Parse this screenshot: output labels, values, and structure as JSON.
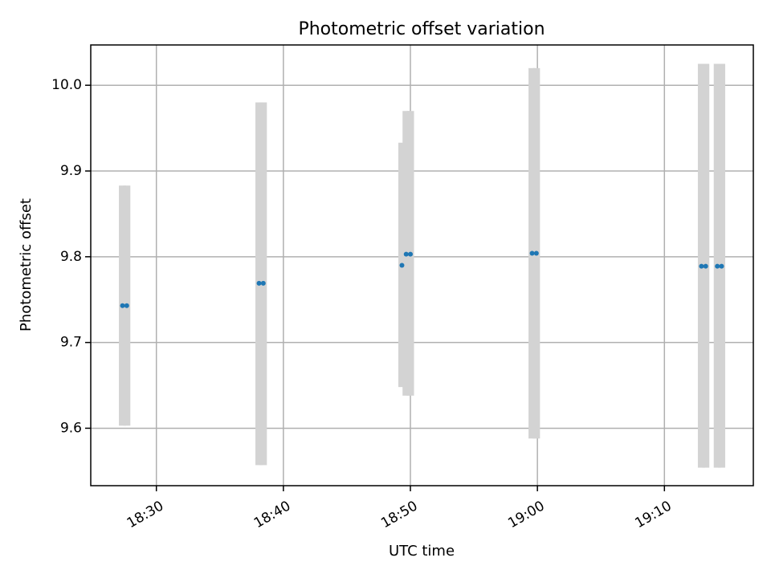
{
  "colors": {
    "error_bar": "#d3d3d3",
    "point": "#1f77b4",
    "grid": "#b0b0b0"
  },
  "chart_data": {
    "type": "scatter",
    "title": "Photometric offset variation",
    "xlabel": "UTC time",
    "ylabel": "Photometric offset",
    "grid": true,
    "legend": "none",
    "xlim": [
      "18:24:50",
      "19:17:00"
    ],
    "ylim": [
      9.533,
      10.047
    ],
    "x_ticks": [
      "18:30",
      "18:40",
      "18:50",
      "19:00",
      "19:10"
    ],
    "y_ticks": [
      "9.6",
      "9.7",
      "9.8",
      "9.9",
      "10.0"
    ],
    "series": [
      {
        "values": [
          {
            "x": "18:27:20",
            "y": 9.743,
            "y_low": 9.603,
            "y_high": 9.883
          },
          {
            "x": "18:27:40",
            "y": 9.743,
            "y_low": 9.603,
            "y_high": 9.883
          },
          {
            "x": "18:38:05",
            "y": 9.769,
            "y_low": 9.557,
            "y_high": 9.98
          },
          {
            "x": "18:38:25",
            "y": 9.769,
            "y_low": 9.557,
            "y_high": 9.98
          },
          {
            "x": "18:49:20",
            "y": 9.79,
            "y_low": 9.648,
            "y_high": 9.933
          },
          {
            "x": "18:49:40",
            "y": 9.803,
            "y_low": 9.638,
            "y_high": 9.97
          },
          {
            "x": "18:50:00",
            "y": 9.803,
            "y_low": 9.638,
            "y_high": 9.97
          },
          {
            "x": "18:59:35",
            "y": 9.804,
            "y_low": 9.588,
            "y_high": 10.02
          },
          {
            "x": "18:59:55",
            "y": 9.804,
            "y_low": 9.588,
            "y_high": 10.02
          },
          {
            "x": "19:12:55",
            "y": 9.789,
            "y_low": 9.554,
            "y_high": 10.025
          },
          {
            "x": "19:13:15",
            "y": 9.789,
            "y_low": 9.554,
            "y_high": 10.025
          },
          {
            "x": "19:14:10",
            "y": 9.789,
            "y_low": 9.554,
            "y_high": 10.025
          },
          {
            "x": "19:14:30",
            "y": 9.789,
            "y_low": 9.554,
            "y_high": 10.025
          }
        ]
      }
    ]
  }
}
